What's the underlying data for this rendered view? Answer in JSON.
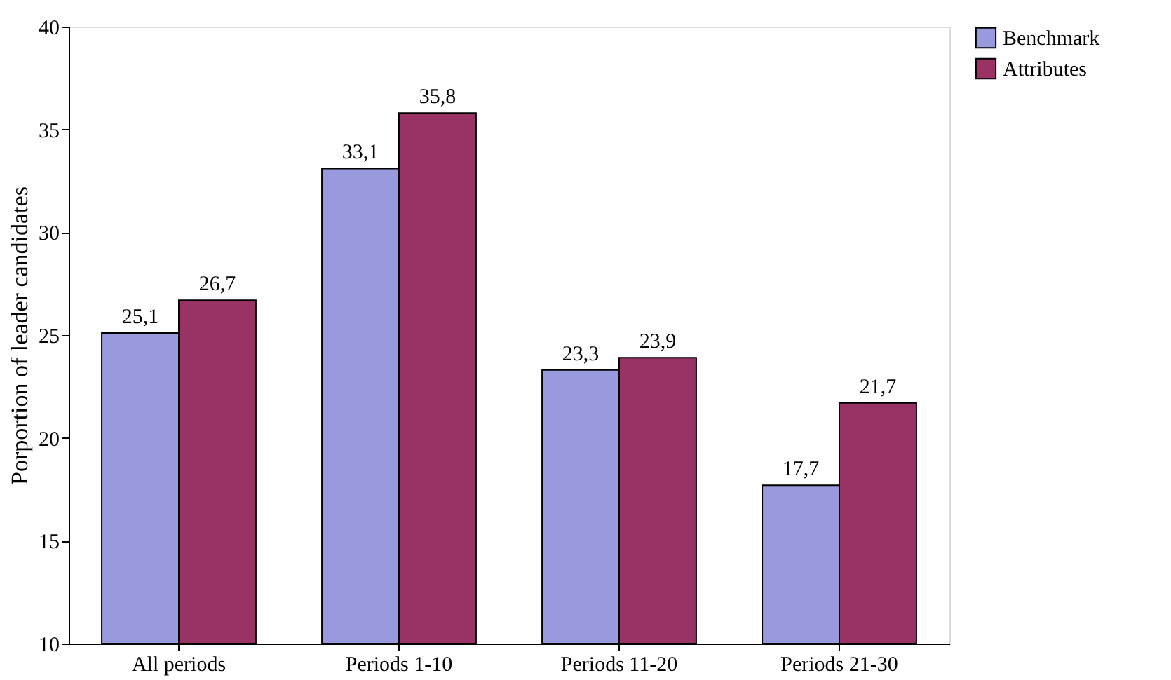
{
  "chart_data": {
    "type": "bar",
    "ylabel": "Porportion of leader candidates",
    "categories": [
      "All periods",
      "Periods 1-10",
      "Periods 11-20",
      "Periods 21-30"
    ],
    "series": [
      {
        "name": "Benchmark",
        "color": "#9999dd",
        "values": [
          25.1,
          33.1,
          23.3,
          17.7
        ],
        "value_labels": [
          "25,1",
          "33,1",
          "23,3",
          "17,7"
        ]
      },
      {
        "name": "Attributes",
        "color": "#993366",
        "values": [
          26.7,
          35.8,
          23.9,
          21.7
        ],
        "value_labels": [
          "26,7",
          "35,8",
          "23,9",
          "21,7"
        ]
      }
    ],
    "ylim": [
      10,
      40
    ],
    "yticks": [
      10,
      15,
      20,
      25,
      30,
      35,
      40
    ],
    "grid": false,
    "legend": "right"
  }
}
